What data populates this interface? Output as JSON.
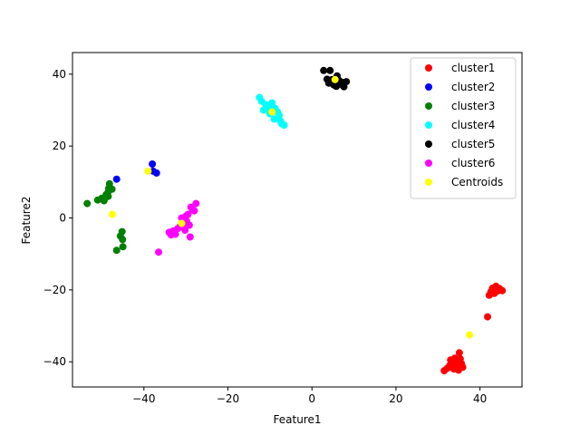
{
  "chart_data": {
    "type": "scatter",
    "title": "",
    "xlabel": "Feature1",
    "ylabel": "Feature2",
    "xlim": [
      -57,
      50
    ],
    "ylim": [
      -47,
      46
    ],
    "xticks": [
      -40,
      -20,
      0,
      20,
      40
    ],
    "yticks": [
      -40,
      -20,
      0,
      20,
      40
    ],
    "tick_labels_x": [
      "−40",
      "−20",
      "0",
      "20",
      "40"
    ],
    "tick_labels_y": [
      "−40",
      "−20",
      "0",
      "20",
      "40"
    ],
    "grid": false,
    "legend_position": "top-right",
    "series": [
      {
        "name": "cluster1",
        "color": "#ff0000",
        "points": [
          [
            31.5,
            -42.5
          ],
          [
            32.2,
            -41.8
          ],
          [
            32.8,
            -41
          ],
          [
            33,
            -39.5
          ],
          [
            33.5,
            -40.5
          ],
          [
            33.8,
            -42
          ],
          [
            34,
            -39
          ],
          [
            34.3,
            -41.2
          ],
          [
            34.6,
            -40
          ],
          [
            34.9,
            -42.3
          ],
          [
            35.1,
            -37.5
          ],
          [
            35.3,
            -39.2
          ],
          [
            35.6,
            -40.5
          ],
          [
            35.9,
            -41.5
          ],
          [
            34.2,
            -40.8
          ],
          [
            41.8,
            -27.5
          ],
          [
            42.2,
            -21.5
          ],
          [
            42.6,
            -20.5
          ],
          [
            43,
            -19.5
          ],
          [
            43.4,
            -21
          ],
          [
            43.8,
            -19
          ],
          [
            44.2,
            -20.3
          ],
          [
            44.6,
            -19.6
          ],
          [
            45.3,
            -20.2
          ]
        ]
      },
      {
        "name": "cluster2",
        "color": "#0000ff",
        "points": [
          [
            -46.5,
            10.8
          ],
          [
            -38,
            15
          ],
          [
            -37.8,
            13
          ],
          [
            -37,
            12.5
          ]
        ]
      },
      {
        "name": "cluster3",
        "color": "#008000",
        "points": [
          [
            -53.5,
            4
          ],
          [
            -51,
            5
          ],
          [
            -50,
            5.5
          ],
          [
            -49.5,
            4.8
          ],
          [
            -49,
            6.5
          ],
          [
            -48.6,
            7
          ],
          [
            -48.4,
            8.2
          ],
          [
            -48.2,
            9.5
          ],
          [
            -47.6,
            8
          ],
          [
            -48.5,
            6
          ],
          [
            -46.5,
            -9
          ],
          [
            -45.6,
            -5
          ],
          [
            -45.1,
            -6
          ],
          [
            -45,
            -8
          ],
          [
            -45.2,
            -3.8
          ]
        ]
      },
      {
        "name": "cluster4",
        "color": "#00ffff",
        "points": [
          [
            -12.5,
            33.5
          ],
          [
            -12,
            32.5
          ],
          [
            -11.5,
            30
          ],
          [
            -11,
            31.5
          ],
          [
            -10.6,
            30.5
          ],
          [
            -10,
            29
          ],
          [
            -9.5,
            32
          ],
          [
            -9,
            27.5
          ],
          [
            -8.8,
            30.5
          ],
          [
            -8.2,
            29.5
          ],
          [
            -7.8,
            28.5
          ],
          [
            -7.5,
            27
          ],
          [
            -7.2,
            26.2
          ],
          [
            -6.6,
            25.8
          ],
          [
            -10.2,
            31
          ]
        ]
      },
      {
        "name": "cluster5",
        "color": "#000000",
        "points": [
          [
            2.8,
            41
          ],
          [
            4,
            37.5
          ],
          [
            4.3,
            41
          ],
          [
            4.8,
            38.5
          ],
          [
            5.2,
            37
          ],
          [
            5.8,
            36.6
          ],
          [
            6,
            39.5
          ],
          [
            6.4,
            38.3
          ],
          [
            6.8,
            37.2
          ],
          [
            7.2,
            37.7
          ],
          [
            7.6,
            36.5
          ],
          [
            8.2,
            37.9
          ],
          [
            3.6,
            38.6
          ]
        ]
      },
      {
        "name": "cluster6",
        "color": "#ff00ff",
        "points": [
          [
            -36.5,
            -9.5
          ],
          [
            -34,
            -4
          ],
          [
            -33.5,
            -4.7
          ],
          [
            -33,
            -3.6
          ],
          [
            -32.5,
            -4.5
          ],
          [
            -32,
            -3
          ],
          [
            -31.5,
            -2.5
          ],
          [
            -31,
            0
          ],
          [
            -30.5,
            -1.5
          ],
          [
            -30,
            0.5
          ],
          [
            -29.8,
            -1
          ],
          [
            -29.5,
            1
          ],
          [
            -29.2,
            -2
          ],
          [
            -29,
            -5.3
          ],
          [
            -28.8,
            3
          ],
          [
            -28.5,
            2.5
          ],
          [
            -28,
            2
          ],
          [
            -27.6,
            4
          ],
          [
            -30.2,
            -3.4
          ]
        ]
      },
      {
        "name": "Centroids",
        "color": "#ffff00",
        "points": [
          [
            37.5,
            -32.5
          ],
          [
            -39,
            13
          ],
          [
            -47.5,
            1
          ],
          [
            -9.5,
            29.5
          ],
          [
            5.5,
            38.5
          ],
          [
            -31,
            -1.5
          ]
        ]
      }
    ]
  }
}
